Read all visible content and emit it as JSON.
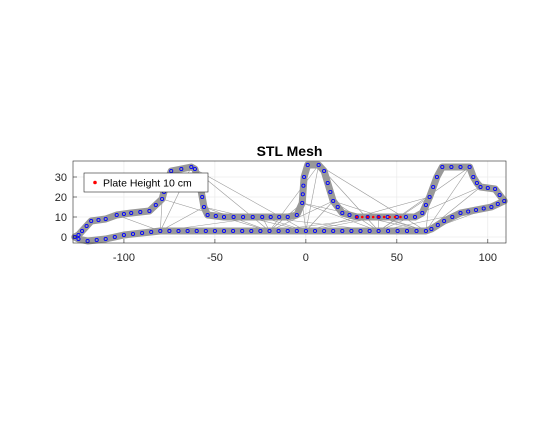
{
  "chart_data": {
    "type": "scatter",
    "title": "STL Mesh",
    "xlabel": "",
    "ylabel": "",
    "xlim": [
      -128,
      110
    ],
    "ylim": [
      -3,
      38
    ],
    "xticks": [
      -100,
      -50,
      0,
      50,
      100
    ],
    "yticks": [
      0,
      10,
      20,
      30
    ],
    "grid": true,
    "axis_equal": true,
    "legend": {
      "position": "top-left",
      "entries": [
        "Plate Height 10 cm"
      ]
    },
    "colors": {
      "mesh_edges": "#999999",
      "vertices": "#0000ff",
      "plate_points": "#ff0000"
    },
    "outline": [
      [
        -123,
        3
      ],
      [
        -118,
        8
      ],
      [
        -110,
        9
      ],
      [
        -104,
        11
      ],
      [
        -96,
        12
      ],
      [
        -86,
        13
      ],
      [
        -79,
        19
      ],
      [
        -77,
        26
      ],
      [
        -74,
        33
      ],
      [
        -63,
        35
      ],
      [
        -61,
        34
      ],
      [
        -58,
        25
      ],
      [
        -56,
        15
      ],
      [
        -54,
        11
      ],
      [
        -45,
        10
      ],
      [
        -24,
        10
      ],
      [
        -10,
        10
      ],
      [
        -5,
        11
      ],
      [
        -2,
        17
      ],
      [
        -1,
        30
      ],
      [
        1,
        36
      ],
      [
        7,
        36
      ],
      [
        10,
        33
      ],
      [
        12,
        27
      ],
      [
        15,
        18
      ],
      [
        20,
        12
      ],
      [
        28,
        10
      ],
      [
        40,
        10
      ],
      [
        60,
        10
      ],
      [
        64,
        12
      ],
      [
        68,
        20
      ],
      [
        72,
        30
      ],
      [
        75,
        35
      ],
      [
        90,
        35
      ],
      [
        92,
        30
      ],
      [
        94,
        27
      ],
      [
        96,
        25
      ],
      [
        104,
        24
      ],
      [
        109,
        18
      ],
      [
        102,
        15
      ],
      [
        85,
        12
      ],
      [
        76,
        8
      ],
      [
        69,
        4
      ],
      [
        66,
        3
      ],
      [
        40,
        3
      ],
      [
        10,
        3
      ],
      [
        -20,
        3
      ],
      [
        -50,
        3
      ],
      [
        -80,
        3
      ],
      [
        -100,
        1
      ],
      [
        -110,
        -1
      ],
      [
        -120,
        -2
      ],
      [
        -125,
        -1
      ],
      [
        -127,
        0
      ],
      [
        -125,
        1
      ],
      [
        -123,
        3
      ]
    ],
    "plate_points": [
      [
        28,
        10
      ],
      [
        31,
        10
      ],
      [
        34,
        10
      ],
      [
        37,
        10
      ],
      [
        40,
        10
      ],
      [
        43,
        10
      ],
      [
        46,
        10
      ],
      [
        49,
        10
      ],
      [
        52,
        10
      ]
    ]
  }
}
